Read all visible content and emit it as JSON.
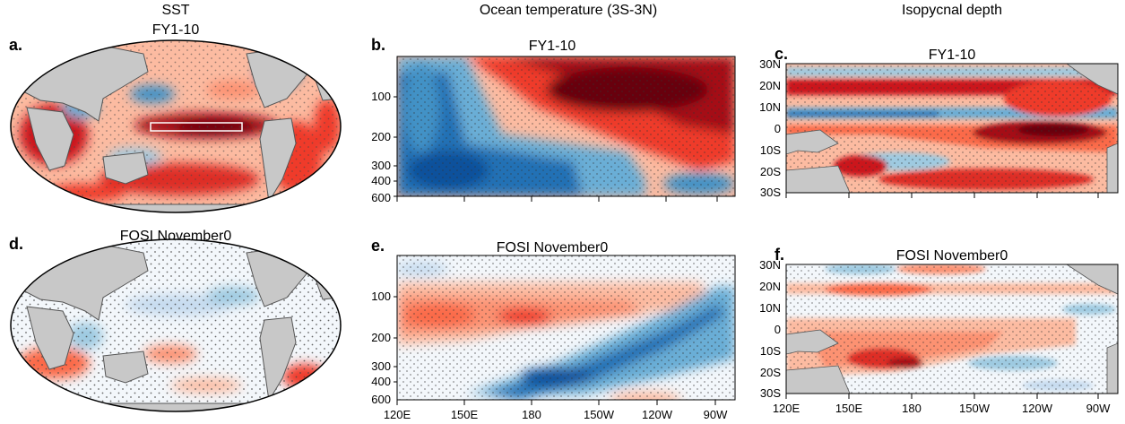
{
  "column_titles": {
    "sst": "SST",
    "ocean": "Ocean temperature (3S-3N)",
    "iso": "Isopycnal depth"
  },
  "panels": {
    "a": {
      "letter": "a.",
      "title": "FY1-10"
    },
    "b": {
      "letter": "b.",
      "title": "FY1-10"
    },
    "c": {
      "letter": "c.",
      "title": "FY1-10"
    },
    "d": {
      "letter": "d.",
      "title": "FOSI November0"
    },
    "e": {
      "letter": "e.",
      "title": "FOSI November0"
    },
    "f": {
      "letter": "f.",
      "title": "FOSI November0"
    }
  },
  "colors": {
    "land": "#c8c8c8",
    "coast": "#555555",
    "stipple": "#333333",
    "red_dark": "#7a0a0a",
    "red": "#d7301f",
    "red_light": "#fcae91",
    "blue_dark": "#08306b",
    "blue": "#2171b5",
    "blue_light": "#9ecae1"
  },
  "chart_data": [
    {
      "panel": "b",
      "type": "heatmap",
      "title": "FY1-10",
      "ylabel": "",
      "xlabel": "",
      "y_ticks": [
        100,
        200,
        300,
        400,
        600
      ],
      "ylim": [
        600,
        0
      ],
      "x_ticks": [
        "120E",
        "150E",
        "180",
        "150W",
        "120W",
        "90W"
      ],
      "x_tick_labels_shown": false,
      "stippled": true
    },
    {
      "panel": "c",
      "type": "heatmap",
      "title": "FY1-10",
      "y_ticks": [
        "30N",
        "20N",
        "10N",
        "0",
        "10S",
        "20S",
        "30S"
      ],
      "x_ticks": [
        "120E",
        "150E",
        "180",
        "150W",
        "120W",
        "90W"
      ],
      "x_tick_labels_shown": false,
      "stippled": true
    },
    {
      "panel": "e",
      "type": "heatmap",
      "title": "FOSI November0",
      "y_ticks": [
        100,
        200,
        300,
        400,
        600
      ],
      "ylim": [
        600,
        0
      ],
      "x_ticks": [
        "120E",
        "150E",
        "180",
        "150W",
        "120W",
        "90W"
      ],
      "x_tick_labels_shown": true,
      "stippled": true
    },
    {
      "panel": "f",
      "type": "heatmap",
      "title": "FOSI November0",
      "y_ticks": [
        "30N",
        "20N",
        "10N",
        "0",
        "10S",
        "20S",
        "30S"
      ],
      "x_ticks": [
        "120E",
        "150E",
        "180",
        "150W",
        "120W",
        "90W"
      ],
      "x_tick_labels_shown": true,
      "stippled": true
    }
  ]
}
